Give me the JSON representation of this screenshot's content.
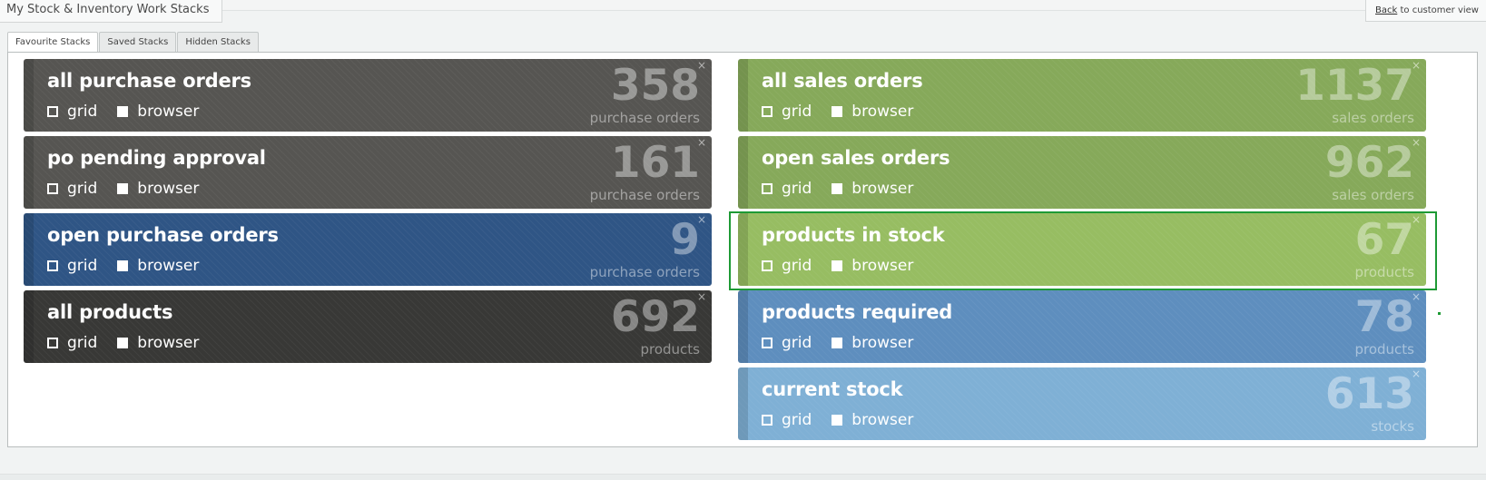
{
  "page_title": "My Stock & Inventory Work Stacks",
  "back_link": {
    "link_text": "Back",
    "rest_text": " to customer view"
  },
  "tabs": [
    {
      "label": "Favourite Stacks",
      "active": true
    },
    {
      "label": "Saved Stacks",
      "active": false
    },
    {
      "label": "Hidden Stacks",
      "active": false
    }
  ],
  "option_labels": {
    "grid": "grid",
    "browser": "browser",
    "close": "×"
  },
  "stacks_left": [
    {
      "title": "all purchase orders",
      "count": "358",
      "unit": "purchase orders",
      "color": "#565552"
    },
    {
      "title": "po pending approval",
      "count": "161",
      "unit": "purchase orders",
      "color": "#565552"
    },
    {
      "title": "open purchase orders",
      "count": "9",
      "unit": "purchase orders",
      "color": "#2f5585"
    },
    {
      "title": "all products",
      "count": "692",
      "unit": "products",
      "color": "#383836"
    }
  ],
  "stacks_right": [
    {
      "title": "all sales orders",
      "count": "1137",
      "unit": "sales orders",
      "color": "#86a95a"
    },
    {
      "title": "open sales orders",
      "count": "962",
      "unit": "sales orders",
      "color": "#86a95a"
    },
    {
      "title": "products in stock",
      "count": "67",
      "unit": "products",
      "color": "#97bd62"
    },
    {
      "title": "products required",
      "count": "78",
      "unit": "products",
      "color": "#5e8ebe"
    },
    {
      "title": "current stock",
      "count": "613",
      "unit": "stocks",
      "color": "#7fb0d5"
    }
  ]
}
